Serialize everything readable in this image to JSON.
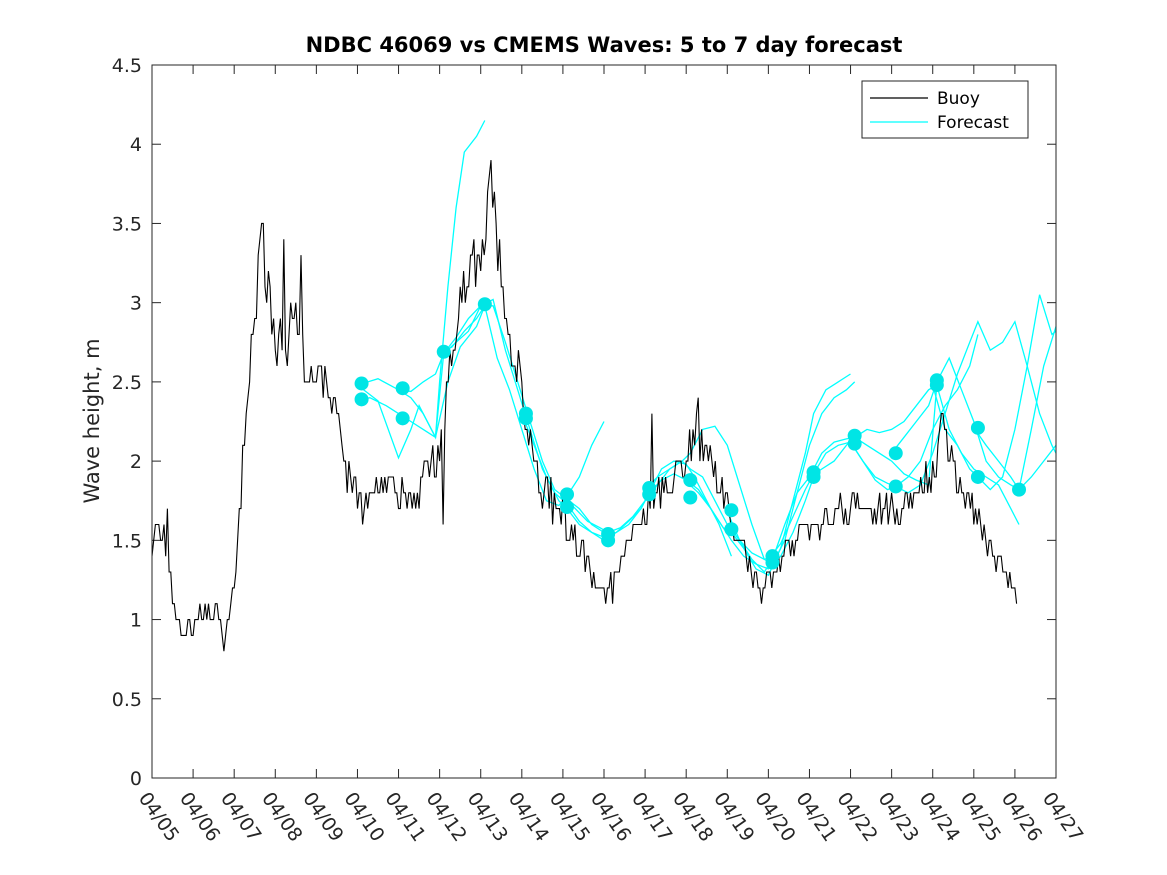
{
  "chart_data": {
    "type": "line",
    "title": "NDBC 46069 vs CMEMS Waves: 5 to 7 day forecast",
    "xlabel": "",
    "ylabel": "Wave height, m",
    "xlim": [
      0,
      22
    ],
    "ylim": [
      0,
      4.5
    ],
    "x_unit": "days since 04/05",
    "xticks": [
      0,
      1,
      2,
      3,
      4,
      5,
      6,
      7,
      8,
      9,
      10,
      11,
      12,
      13,
      14,
      15,
      16,
      17,
      18,
      19,
      20,
      21,
      22
    ],
    "xtick_labels": [
      "04/05",
      "04/06",
      "04/07",
      "04/08",
      "04/09",
      "04/10",
      "04/11",
      "04/12",
      "04/13",
      "04/14",
      "04/15",
      "04/16",
      "04/17",
      "04/18",
      "04/19",
      "04/20",
      "04/21",
      "04/22",
      "04/23",
      "04/24",
      "04/25",
      "04/26",
      "04/27"
    ],
    "yticks": [
      0,
      0.5,
      1,
      1.5,
      2,
      2.5,
      3,
      3.5,
      4,
      4.5
    ],
    "ytick_labels": [
      "0",
      "0.5",
      "1",
      "1.5",
      "2",
      "2.5",
      "3",
      "3.5",
      "4",
      "4.5"
    ],
    "legend": {
      "position": "top-right",
      "entries": [
        {
          "label": "Buoy",
          "color": "#000000"
        },
        {
          "label": "Forecast",
          "color": "#00ffff"
        }
      ]
    },
    "colors": {
      "buoy": "#000000",
      "forecast": "#00ffff",
      "marker": "#00e5e5",
      "axis": "#262626"
    },
    "grid": false,
    "buoy_keypoints": [
      [
        0.0,
        1.45
      ],
      [
        0.1,
        1.6
      ],
      [
        0.3,
        1.55
      ],
      [
        0.4,
        1.35
      ],
      [
        0.5,
        1.15
      ],
      [
        0.6,
        1.0
      ],
      [
        0.8,
        0.9
      ],
      [
        1.0,
        1.0
      ],
      [
        1.3,
        1.05
      ],
      [
        1.5,
        1.05
      ],
      [
        1.65,
        1.0
      ],
      [
        1.75,
        0.85
      ],
      [
        1.9,
        1.0
      ],
      [
        2.0,
        1.2
      ],
      [
        2.1,
        1.6
      ],
      [
        2.25,
        2.1
      ],
      [
        2.4,
        2.6
      ],
      [
        2.55,
        3.0
      ],
      [
        2.65,
        3.5
      ],
      [
        2.75,
        3.0
      ],
      [
        2.85,
        3.1
      ],
      [
        3.0,
        2.7
      ],
      [
        3.1,
        2.8
      ],
      [
        3.25,
        2.7
      ],
      [
        3.45,
        2.9
      ],
      [
        3.6,
        2.9
      ],
      [
        3.75,
        2.6
      ],
      [
        4.0,
        2.65
      ],
      [
        4.2,
        2.55
      ],
      [
        4.45,
        2.3
      ],
      [
        4.65,
        2.05
      ],
      [
        4.85,
        1.85
      ],
      [
        5.0,
        1.8
      ],
      [
        5.2,
        1.75
      ],
      [
        5.45,
        1.8
      ],
      [
        5.7,
        1.85
      ],
      [
        5.95,
        1.8
      ],
      [
        6.2,
        1.75
      ],
      [
        6.45,
        1.8
      ],
      [
        6.6,
        1.9
      ],
      [
        6.75,
        2.05
      ],
      [
        6.9,
        2.0
      ],
      [
        7.05,
        2.15
      ],
      [
        7.2,
        2.5
      ],
      [
        7.35,
        2.75
      ],
      [
        7.55,
        3.0
      ],
      [
        7.75,
        3.3
      ],
      [
        7.9,
        3.2
      ],
      [
        8.1,
        3.45
      ],
      [
        8.25,
        3.8
      ],
      [
        8.35,
        3.55
      ],
      [
        8.45,
        3.3
      ],
      [
        8.6,
        3.0
      ],
      [
        8.75,
        2.75
      ],
      [
        8.95,
        2.55
      ],
      [
        9.1,
        2.25
      ],
      [
        9.3,
        2.0
      ],
      [
        9.5,
        1.85
      ],
      [
        9.75,
        1.75
      ],
      [
        10.0,
        1.7
      ],
      [
        10.2,
        1.55
      ],
      [
        10.4,
        1.45
      ],
      [
        10.6,
        1.35
      ],
      [
        10.8,
        1.25
      ],
      [
        11.0,
        1.2
      ],
      [
        11.2,
        1.25
      ],
      [
        11.4,
        1.35
      ],
      [
        11.6,
        1.5
      ],
      [
        11.85,
        1.6
      ],
      [
        12.05,
        1.7
      ],
      [
        12.3,
        1.8
      ],
      [
        12.5,
        1.85
      ],
      [
        12.75,
        1.9
      ],
      [
        12.9,
        1.95
      ],
      [
        13.05,
        2.05
      ],
      [
        13.25,
        2.15
      ],
      [
        13.45,
        2.1
      ],
      [
        13.65,
        2.0
      ],
      [
        13.85,
        1.85
      ],
      [
        14.0,
        1.7
      ],
      [
        14.2,
        1.5
      ],
      [
        14.45,
        1.4
      ],
      [
        14.65,
        1.3
      ],
      [
        14.85,
        1.2
      ],
      [
        15.0,
        1.25
      ],
      [
        15.2,
        1.35
      ],
      [
        15.4,
        1.45
      ],
      [
        15.6,
        1.5
      ],
      [
        15.85,
        1.55
      ],
      [
        16.1,
        1.6
      ],
      [
        16.35,
        1.65
      ],
      [
        16.6,
        1.65
      ],
      [
        16.85,
        1.65
      ],
      [
        17.1,
        1.7
      ],
      [
        17.35,
        1.7
      ],
      [
        17.6,
        1.65
      ],
      [
        17.85,
        1.7
      ],
      [
        18.1,
        1.7
      ],
      [
        18.35,
        1.75
      ],
      [
        18.55,
        1.8
      ],
      [
        18.75,
        1.85
      ],
      [
        18.95,
        1.95
      ],
      [
        19.1,
        2.05
      ],
      [
        19.25,
        2.25
      ],
      [
        19.4,
        2.1
      ],
      [
        19.55,
        1.9
      ],
      [
        19.75,
        1.75
      ],
      [
        19.95,
        1.7
      ],
      [
        20.1,
        1.6
      ],
      [
        20.3,
        1.5
      ],
      [
        20.5,
        1.4
      ],
      [
        20.7,
        1.3
      ],
      [
        20.9,
        1.25
      ],
      [
        21.05,
        1.2
      ]
    ],
    "buoy_peaks": [
      [
        0.35,
        1.7
      ],
      [
        1.15,
        1.1
      ],
      [
        1.75,
        0.8
      ],
      [
        2.7,
        3.5
      ],
      [
        3.2,
        3.4
      ],
      [
        3.6,
        3.3
      ],
      [
        5.1,
        1.6
      ],
      [
        7.05,
        1.6
      ],
      [
        8.2,
        3.8
      ],
      [
        8.3,
        3.7
      ],
      [
        10.5,
        1.3
      ],
      [
        11.2,
        1.1
      ],
      [
        12.15,
        2.3
      ],
      [
        13.25,
        2.4
      ],
      [
        14.8,
        1.1
      ],
      [
        19.2,
        2.3
      ],
      [
        21.05,
        1.1
      ]
    ],
    "forecast_series": [
      {
        "name": "",
        "x": [
          5.0,
          5.5,
          6.0,
          6.3,
          6.5,
          6.7,
          6.9,
          7.0,
          7.2,
          7.4,
          7.6,
          7.9,
          8.1,
          8.4,
          8.7,
          9.0,
          9.2,
          9.5,
          9.8,
          10.1,
          10.4,
          10.7,
          11.0
        ],
        "y": [
          2.48,
          2.38,
          2.02,
          2.2,
          2.35,
          2.25,
          2.15,
          2.5,
          3.1,
          3.6,
          3.95,
          4.05,
          4.15,
          null,
          null,
          null,
          null,
          null,
          null,
          null,
          null,
          null,
          null
        ]
      },
      {
        "name": "",
        "x": [
          5.0,
          5.5,
          6.0,
          6.3,
          6.6,
          6.9,
          7.1,
          7.4,
          7.7,
          8.0,
          8.3,
          8.6,
          8.9,
          9.2,
          9.5,
          9.8,
          10.1,
          10.4,
          10.7,
          11.0
        ],
        "y": [
          2.48,
          2.52,
          2.45,
          2.44,
          2.5,
          2.55,
          2.68,
          2.78,
          2.9,
          2.98,
          2.98,
          2.75,
          2.5,
          2.25,
          2.0,
          1.82,
          1.76,
          1.7,
          1.6,
          1.55
        ]
      },
      {
        "name": "",
        "x": [
          5.0,
          5.3,
          5.7,
          6.0,
          6.3,
          6.6,
          6.9,
          7.2,
          7.5,
          7.9,
          8.1
        ],
        "y": [
          2.38,
          2.4,
          2.35,
          2.3,
          2.25,
          2.2,
          2.15,
          2.5,
          2.72,
          2.85,
          2.98
        ]
      },
      {
        "name": "",
        "x": [
          6.0,
          6.3,
          6.6,
          6.9,
          7.1,
          7.4,
          7.7,
          8.0,
          8.3,
          8.6,
          8.9,
          9.2,
          9.5,
          9.8,
          10.1,
          10.4,
          10.7,
          11.0
        ],
        "y": [
          2.45,
          2.4,
          2.3,
          2.15,
          2.68,
          2.75,
          2.82,
          2.98,
          3.02,
          2.7,
          2.45,
          2.2,
          1.95,
          1.8,
          1.73,
          1.62,
          1.55,
          1.5
        ]
      },
      {
        "name": "",
        "x": [
          7.0,
          7.3,
          7.6,
          7.9,
          8.1,
          8.4,
          8.7,
          9.0,
          9.3,
          9.6,
          9.9,
          10.1,
          10.4,
          10.7,
          11.0
        ],
        "y": [
          2.68,
          2.72,
          2.82,
          2.9,
          2.98,
          2.65,
          2.45,
          2.2,
          1.95,
          1.75,
          1.72,
          1.78,
          1.9,
          2.1,
          2.25
        ]
      },
      {
        "name": "",
        "x": [
          9.0,
          9.3,
          9.6,
          9.9,
          10.1,
          10.4,
          10.7,
          11.0,
          11.3,
          11.6,
          11.9,
          12.1,
          12.4,
          12.7,
          13.0,
          13.2,
          13.5,
          13.8,
          14.1
        ],
        "y": [
          2.3,
          2.1,
          1.9,
          1.75,
          1.7,
          1.6,
          1.55,
          1.52,
          1.55,
          1.6,
          1.7,
          1.8,
          1.95,
          2.0,
          1.98,
          1.9,
          1.75,
          1.6,
          1.4
        ]
      },
      {
        "name": "",
        "x": [
          10.0,
          10.3,
          10.6,
          10.9,
          11.1,
          11.4,
          11.7,
          12.0,
          12.3,
          12.6,
          12.9,
          13.1,
          13.4,
          13.7,
          14.0,
          14.3,
          14.6,
          14.9,
          15.1
        ],
        "y": [
          1.78,
          1.7,
          1.62,
          1.58,
          1.55,
          1.58,
          1.65,
          1.75,
          1.85,
          1.95,
          2.0,
          1.95,
          1.9,
          1.75,
          1.6,
          1.5,
          1.42,
          1.38,
          1.4
        ]
      },
      {
        "name": "",
        "x": [
          11.0,
          11.3,
          11.6,
          11.9,
          12.1,
          12.4,
          12.7,
          13.0,
          13.3,
          13.6,
          13.9,
          14.1,
          14.4,
          14.7,
          15.0,
          15.3,
          15.6,
          15.9,
          16.1
        ],
        "y": [
          1.5,
          1.55,
          1.62,
          1.7,
          1.8,
          1.88,
          1.92,
          1.88,
          1.82,
          1.7,
          1.58,
          1.5,
          1.4,
          1.35,
          1.32,
          1.4,
          1.55,
          1.75,
          1.9
        ]
      },
      {
        "name": "",
        "x": [
          12.0,
          12.3,
          12.6,
          12.9,
          13.1,
          13.4,
          13.7,
          14.0,
          14.3,
          14.6,
          14.9,
          15.1,
          15.4,
          15.7,
          16.0,
          16.3,
          16.6,
          16.9,
          17.1
        ],
        "y": [
          1.82,
          1.9,
          1.95,
          2.0,
          2.05,
          2.2,
          2.22,
          2.1,
          1.85,
          1.6,
          1.38,
          1.35,
          1.5,
          1.8,
          2.1,
          2.3,
          2.4,
          2.45,
          2.5
        ]
      },
      {
        "name": "",
        "x": [
          13.0,
          13.3,
          13.6,
          13.9,
          14.1,
          14.4,
          14.7,
          15.0,
          15.3,
          15.6,
          15.9,
          16.1,
          16.4,
          16.7,
          17.0,
          17.3,
          17.6,
          17.9,
          18.1
        ],
        "y": [
          1.87,
          1.8,
          1.7,
          1.58,
          1.55,
          1.45,
          1.32,
          1.28,
          1.45,
          1.75,
          2.05,
          2.3,
          2.45,
          2.5,
          2.55,
          null,
          null,
          null,
          null
        ]
      },
      {
        "name": "",
        "x": [
          14.0,
          14.3,
          14.6,
          14.9,
          15.1,
          15.4,
          15.7,
          16.0,
          16.3,
          16.6,
          16.9,
          17.1,
          17.4,
          17.7,
          18.0,
          18.3,
          18.6,
          18.9,
          19.1
        ],
        "y": [
          1.68,
          1.5,
          1.38,
          1.3,
          1.38,
          1.6,
          1.8,
          1.9,
          1.95,
          2.0,
          2.1,
          2.15,
          2.2,
          2.18,
          2.2,
          2.25,
          2.35,
          2.45,
          2.48
        ]
      },
      {
        "name": "",
        "x": [
          15.0,
          15.3,
          15.6,
          15.9,
          16.1,
          16.4,
          16.7,
          17.0,
          17.3,
          17.6,
          17.9,
          18.1,
          18.4,
          18.7,
          19.0,
          19.3,
          19.6,
          19.9,
          20.1
        ],
        "y": [
          1.38,
          1.48,
          1.65,
          1.82,
          1.92,
          2.05,
          2.1,
          2.12,
          2.0,
          1.88,
          1.82,
          1.84,
          1.9,
          2.0,
          2.2,
          2.35,
          2.45,
          2.6,
          2.8
        ]
      },
      {
        "name": "",
        "x": [
          16.0,
          16.3,
          16.6,
          16.9,
          17.1,
          17.4,
          17.7,
          18.0,
          18.3,
          18.6,
          18.9,
          19.1,
          19.4,
          19.7,
          20.0,
          20.3,
          20.6,
          20.9,
          21.1
        ],
        "y": [
          1.9,
          2.05,
          2.12,
          2.14,
          2.15,
          2.1,
          2.05,
          2.0,
          1.92,
          1.88,
          1.85,
          2.48,
          2.2,
          2.05,
          1.95,
          1.9,
          1.85,
          1.7,
          1.6
        ]
      },
      {
        "name": "",
        "x": [
          17.0,
          17.3,
          17.6,
          17.9,
          18.1,
          18.4,
          18.7,
          19.0,
          19.3,
          19.6,
          19.9,
          20.1,
          20.4,
          20.7,
          21.0,
          21.3,
          21.6,
          21.9,
          22.0
        ],
        "y": [
          2.12,
          2.0,
          1.9,
          1.86,
          1.84,
          1.8,
          1.85,
          2.05,
          2.3,
          2.55,
          2.75,
          2.88,
          2.7,
          2.75,
          2.88,
          2.6,
          2.3,
          2.1,
          2.05
        ]
      },
      {
        "name": "",
        "x": [
          18.0,
          18.3,
          18.6,
          18.9,
          19.1,
          19.4,
          19.7,
          20.0,
          20.3,
          20.6,
          20.9,
          21.1,
          21.4,
          21.7,
          22.0
        ],
        "y": [
          2.05,
          2.15,
          2.25,
          2.35,
          2.5,
          2.65,
          2.45,
          2.25,
          2.0,
          1.9,
          1.85,
          1.82,
          2.2,
          2.6,
          2.85
        ]
      },
      {
        "name": "",
        "x": [
          19.0,
          19.3,
          19.6,
          19.9,
          20.1,
          20.4,
          20.7,
          21.0,
          21.3,
          21.6,
          21.9,
          22.0
        ],
        "y": [
          2.48,
          2.2,
          2.1,
          1.95,
          1.9,
          1.82,
          1.9,
          2.2,
          2.6,
          3.05,
          2.8,
          2.82
        ]
      },
      {
        "name": "",
        "x": [
          20.0,
          20.3,
          20.6,
          20.9,
          21.1,
          21.4,
          21.7,
          22.0
        ],
        "y": [
          2.21,
          2.1,
          2.0,
          1.9,
          1.82,
          1.9,
          2.0,
          2.1
        ]
      }
    ],
    "forecast_markers": [
      [
        5.1,
        2.49
      ],
      [
        5.1,
        2.39
      ],
      [
        6.1,
        2.46
      ],
      [
        6.1,
        2.27
      ],
      [
        7.1,
        2.69
      ],
      [
        8.1,
        2.99
      ],
      [
        9.1,
        2.3
      ],
      [
        9.1,
        2.27
      ],
      [
        10.1,
        1.79
      ],
      [
        10.1,
        1.71
      ],
      [
        11.1,
        1.54
      ],
      [
        11.1,
        1.5
      ],
      [
        12.1,
        1.83
      ],
      [
        12.1,
        1.79
      ],
      [
        13.1,
        1.88
      ],
      [
        13.1,
        1.77
      ],
      [
        14.1,
        1.69
      ],
      [
        14.1,
        1.57
      ],
      [
        15.1,
        1.4
      ],
      [
        15.1,
        1.36
      ],
      [
        16.1,
        1.93
      ],
      [
        16.1,
        1.9
      ],
      [
        17.1,
        2.16
      ],
      [
        17.1,
        2.11
      ],
      [
        18.1,
        2.05
      ],
      [
        18.1,
        1.84
      ],
      [
        19.1,
        2.51
      ],
      [
        19.1,
        2.48
      ],
      [
        20.1,
        2.21
      ],
      [
        20.1,
        1.9
      ],
      [
        21.1,
        1.82
      ]
    ]
  }
}
